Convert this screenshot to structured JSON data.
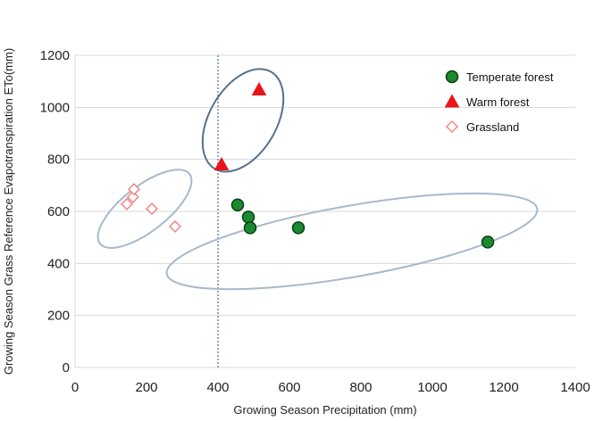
{
  "chart_data": {
    "type": "scatter",
    "xlabel": "Growing Season Precipitation (mm)",
    "ylabel": "Growing Season Grass Reference Evapotranspiration ETo(mm)",
    "xlim": [
      0,
      1400
    ],
    "ylim": [
      0,
      1200
    ],
    "x_ticks": [
      "0",
      "200",
      "400",
      "600",
      "800",
      "1000",
      "1200",
      "1400"
    ],
    "y_ticks": [
      "0",
      "200",
      "400",
      "600",
      "800",
      "1000",
      "1200"
    ],
    "grid": "horizontal",
    "legend_position": "top-right",
    "reference_line_x": 400,
    "series": [
      {
        "name": "Temperate forest",
        "marker": "circle",
        "color": "#1a8a2e",
        "edge_color": "#0b3d14",
        "points": [
          [
            455,
            625
          ],
          [
            485,
            578
          ],
          [
            490,
            537
          ],
          [
            625,
            537
          ],
          [
            1155,
            482
          ]
        ]
      },
      {
        "name": "Warm forest",
        "marker": "triangle",
        "color": "#e8151b",
        "edge_color": "#e8151b",
        "points": [
          [
            410,
            780
          ],
          [
            515,
            1068
          ]
        ]
      },
      {
        "name": "Grassland",
        "marker": "diamond",
        "color": "#ffffff",
        "edge_color": "#f0898a",
        "points": [
          [
            145,
            628
          ],
          [
            162,
            655
          ],
          [
            165,
            685
          ],
          [
            215,
            610
          ],
          [
            280,
            542
          ]
        ]
      }
    ],
    "annotations": [
      {
        "shape": "ellipse",
        "group": "Grassland",
        "cx": 195,
        "cy": 610,
        "rx": 175,
        "ry": 75,
        "angle_deg": -38,
        "color": "#a9b8cc"
      },
      {
        "shape": "ellipse",
        "group": "Warm forest",
        "cx": 470,
        "cy": 950,
        "rx": 195,
        "ry": 100,
        "angle_deg": -60,
        "color": "#5a6f8c"
      },
      {
        "shape": "ellipse",
        "group": "Temperate forest",
        "cx": 775,
        "cy": 485,
        "rx": 530,
        "ry": 135,
        "angle_deg": -10,
        "color": "#a9b8cc"
      }
    ]
  }
}
